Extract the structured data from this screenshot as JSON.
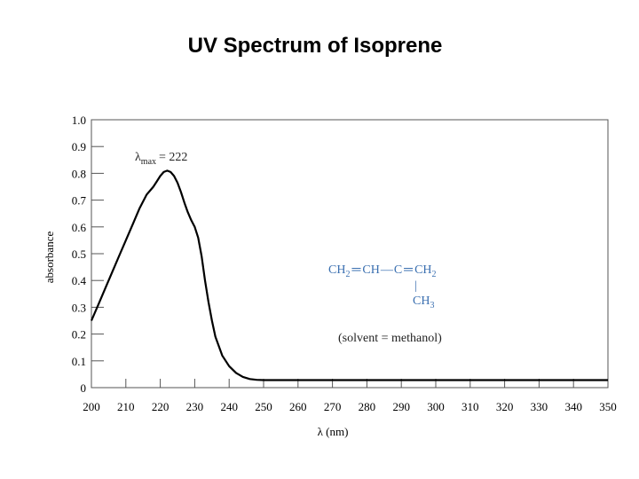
{
  "title": "UV Spectrum of Isoprene",
  "chart_data": {
    "type": "line",
    "xlabel": "λ (nm)",
    "ylabel": "absorbance",
    "xlim": [
      200,
      350
    ],
    "ylim": [
      0,
      1.0
    ],
    "x_ticks": [
      200,
      210,
      220,
      230,
      240,
      250,
      260,
      270,
      280,
      290,
      300,
      310,
      320,
      330,
      340,
      350
    ],
    "y_ticks": [
      0,
      0.1,
      0.2,
      0.3,
      0.4,
      0.5,
      0.6,
      0.7,
      0.8,
      0.9,
      1.0
    ],
    "y_tick_labels": [
      "0",
      "0.1",
      "0.2",
      "0.3",
      "0.4",
      "0.5",
      "0.6",
      "0.7",
      "0.8",
      "0.9",
      "1.0"
    ],
    "grid": false,
    "series": [
      {
        "x": [
          200,
          202,
          204,
          206,
          208,
          210,
          212,
          214,
          216,
          217,
          218,
          219,
          220,
          221,
          222,
          223,
          224,
          225,
          226,
          227,
          228,
          229,
          230,
          231,
          232,
          233,
          234,
          235,
          236,
          238,
          240,
          242,
          244,
          246,
          248,
          250,
          260,
          270,
          280,
          300,
          320,
          340,
          350
        ],
        "y": [
          0.25,
          0.31,
          0.37,
          0.43,
          0.49,
          0.55,
          0.61,
          0.67,
          0.72,
          0.735,
          0.75,
          0.77,
          0.79,
          0.805,
          0.81,
          0.805,
          0.79,
          0.765,
          0.73,
          0.69,
          0.655,
          0.625,
          0.6,
          0.56,
          0.49,
          0.4,
          0.32,
          0.25,
          0.19,
          0.12,
          0.08,
          0.055,
          0.04,
          0.032,
          0.029,
          0.028,
          0.028,
          0.028,
          0.028,
          0.028,
          0.028,
          0.028,
          0.028
        ],
        "color": "#000000"
      }
    ],
    "annotations": {
      "lambda_symbol": "λ",
      "lambda_subscript": "max",
      "lambda_value": "= 222",
      "structure_line1": [
        "CH",
        "2",
        "═",
        "CH",
        "—",
        "C",
        "═",
        "CH",
        "2"
      ],
      "structure_line2": "|",
      "structure_line3": [
        "CH",
        "3"
      ],
      "solvent": "(solvent = methanol)"
    }
  }
}
